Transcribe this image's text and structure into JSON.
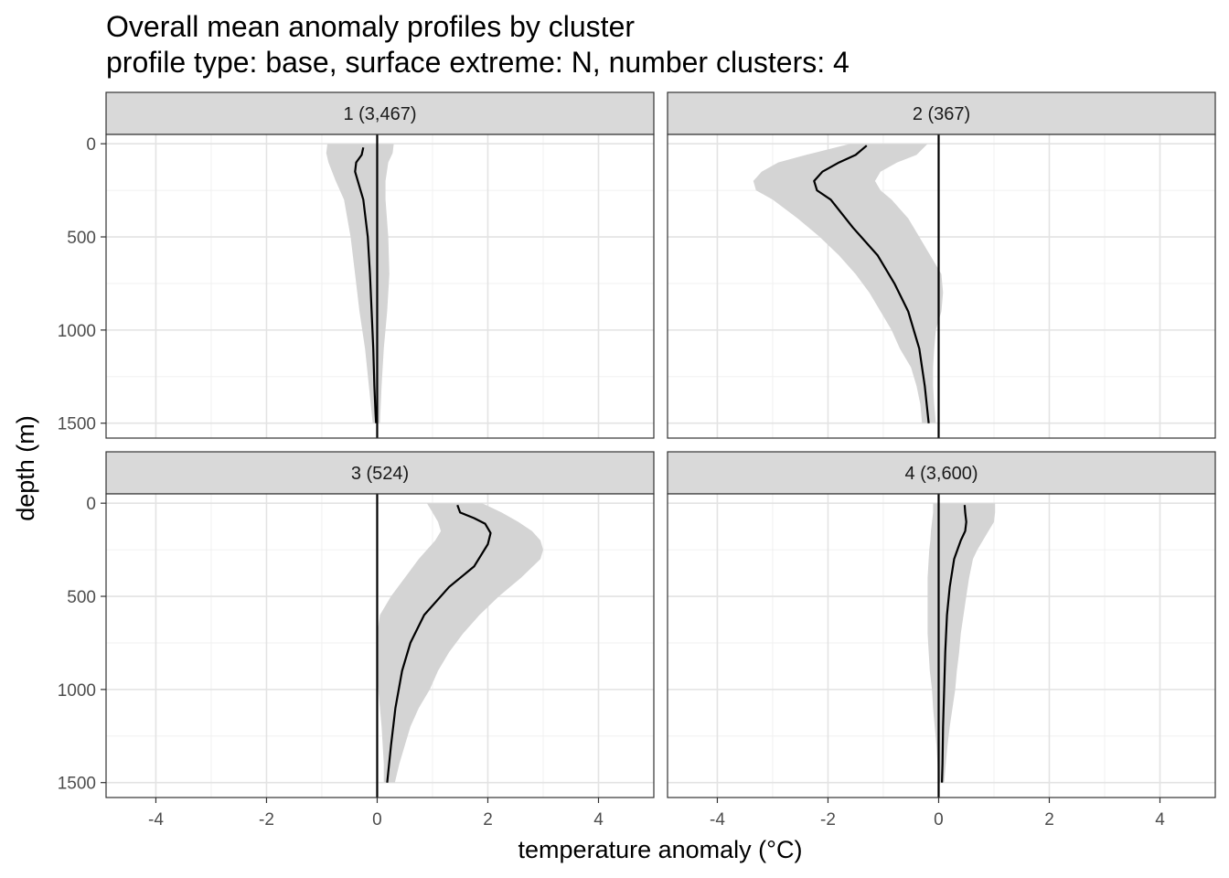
{
  "chart_data": {
    "type": "line",
    "title": "Overall mean anomaly profiles by cluster",
    "subtitle": "profile type: base, surface extreme: N, number clusters: 4",
    "xlabel": "temperature anomaly (°C)",
    "ylabel": "depth (m)",
    "xlim": [
      -4.9,
      5.0
    ],
    "ylim": [
      1580,
      -50
    ],
    "y_reversed": true,
    "x_ticks": [
      -4,
      -2,
      0,
      2,
      4
    ],
    "x_tick_labels": [
      "-4",
      "-2",
      "0",
      "2",
      "4"
    ],
    "y_ticks": [
      0,
      500,
      1000,
      1500
    ],
    "y_tick_labels": [
      "0",
      "500",
      "1000",
      "1500"
    ],
    "grid": true,
    "reference_line_x": 0,
    "panels": [
      {
        "label": "1 (3,467)",
        "mean": {
          "x": [
            -0.25,
            -0.28,
            -0.38,
            -0.4,
            -0.35,
            -0.25,
            -0.17,
            -0.13,
            -0.1,
            -0.07,
            -0.05,
            -0.03,
            -0.02
          ],
          "depth": [
            20,
            60,
            100,
            150,
            200,
            300,
            500,
            700,
            900,
            1100,
            1300,
            1450,
            1500
          ]
        },
        "band": {
          "depth": [
            0,
            50,
            100,
            200,
            300,
            500,
            700,
            900,
            1100,
            1300,
            1500
          ],
          "lower": [
            -0.9,
            -0.92,
            -0.88,
            -0.75,
            -0.6,
            -0.48,
            -0.4,
            -0.32,
            -0.22,
            -0.15,
            -0.08
          ],
          "upper": [
            0.3,
            0.28,
            0.2,
            0.15,
            0.15,
            0.2,
            0.22,
            0.18,
            0.12,
            0.08,
            0.05
          ]
        }
      },
      {
        "label": "2 (367)",
        "mean": {
          "x": [
            -1.3,
            -1.5,
            -1.8,
            -2.1,
            -2.25,
            -2.2,
            -1.95,
            -1.55,
            -1.1,
            -0.8,
            -0.55,
            -0.35,
            -0.25,
            -0.18
          ],
          "depth": [
            10,
            60,
            100,
            150,
            200,
            250,
            300,
            450,
            600,
            750,
            900,
            1100,
            1300,
            1500
          ]
        },
        "band": {
          "depth": [
            0,
            60,
            100,
            150,
            200,
            250,
            300,
            400,
            500,
            600,
            700,
            800,
            900,
            1000,
            1100,
            1200,
            1300,
            1400,
            1500
          ],
          "lower": [
            -1.6,
            -2.4,
            -2.9,
            -3.2,
            -3.35,
            -3.3,
            -3.0,
            -2.55,
            -2.15,
            -1.8,
            -1.5,
            -1.25,
            -1.05,
            -0.85,
            -0.7,
            -0.5,
            -0.4,
            -0.33,
            -0.3
          ],
          "upper": [
            -0.2,
            -0.4,
            -0.75,
            -1.05,
            -1.15,
            -1.05,
            -0.85,
            -0.55,
            -0.35,
            -0.15,
            0.05,
            0.08,
            0.05,
            -0.05,
            -0.08,
            -0.1,
            -0.1,
            -0.08,
            -0.05
          ]
        }
      },
      {
        "label": "3 (524)",
        "mean": {
          "x": [
            1.45,
            1.5,
            1.75,
            1.95,
            2.05,
            2.0,
            1.75,
            1.3,
            0.85,
            0.6,
            0.45,
            0.33,
            0.25,
            0.18
          ],
          "depth": [
            10,
            50,
            80,
            110,
            160,
            220,
            340,
            450,
            600,
            750,
            900,
            1100,
            1300,
            1500
          ]
        },
        "band": {
          "depth": [
            0,
            50,
            100,
            150,
            200,
            250,
            300,
            400,
            500,
            600,
            700,
            800,
            900,
            1000,
            1100,
            1200,
            1300,
            1400,
            1500
          ],
          "lower": [
            0.9,
            1.0,
            1.1,
            1.15,
            1.05,
            0.9,
            0.75,
            0.5,
            0.25,
            0.05,
            0.0,
            0.0,
            0.0,
            0.02,
            0.05,
            0.08,
            0.1,
            0.12,
            0.12
          ],
          "upper": [
            1.9,
            2.25,
            2.55,
            2.8,
            2.95,
            3.0,
            2.95,
            2.6,
            2.2,
            1.85,
            1.55,
            1.3,
            1.1,
            0.95,
            0.75,
            0.6,
            0.5,
            0.4,
            0.32
          ]
        }
      },
      {
        "label": "4 (3,600)",
        "mean": {
          "x": [
            0.47,
            0.48,
            0.5,
            0.48,
            0.4,
            0.28,
            0.2,
            0.15,
            0.12,
            0.1,
            0.08,
            0.07,
            0.06
          ],
          "depth": [
            10,
            50,
            100,
            150,
            200,
            300,
            450,
            600,
            800,
            1000,
            1200,
            1400,
            1500
          ]
        },
        "band": {
          "depth": [
            0,
            50,
            100,
            150,
            200,
            250,
            300,
            400,
            500,
            600,
            700,
            800,
            900,
            1000,
            1100,
            1200,
            1300,
            1400,
            1500
          ],
          "lower": [
            -0.1,
            -0.1,
            -0.12,
            -0.14,
            -0.15,
            -0.17,
            -0.18,
            -0.2,
            -0.2,
            -0.2,
            -0.2,
            -0.18,
            -0.16,
            -0.12,
            -0.1,
            -0.07,
            -0.04,
            -0.02,
            -0.01
          ],
          "upper": [
            1.02,
            1.02,
            1.0,
            0.9,
            0.8,
            0.7,
            0.62,
            0.55,
            0.5,
            0.45,
            0.4,
            0.37,
            0.33,
            0.3,
            0.25,
            0.2,
            0.16,
            0.13,
            0.1
          ]
        }
      }
    ]
  }
}
